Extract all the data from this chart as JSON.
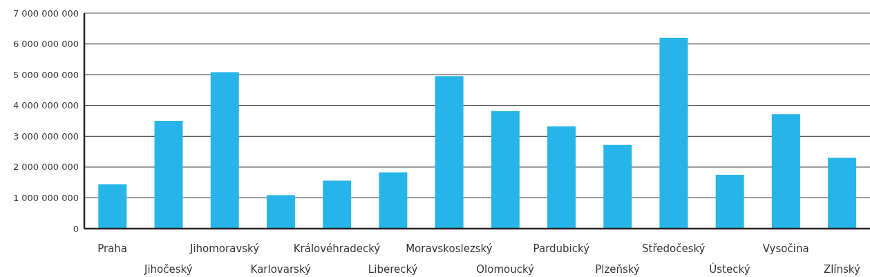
{
  "chart_data": {
    "type": "bar",
    "categories": [
      "Praha",
      "Jihočeský",
      "Jihomoravský",
      "Karlovarský",
      "Královéhradecký",
      "Liberecký",
      "Moravskoslezský",
      "Olomoucký",
      "Pardubický",
      "Plzeňský",
      "Středočeský",
      "Ústecký",
      "Vysočina",
      "Zlínský"
    ],
    "values": [
      1440000000,
      3500000000,
      5080000000,
      1090000000,
      1560000000,
      1830000000,
      4950000000,
      3820000000,
      3320000000,
      2720000000,
      6200000000,
      1750000000,
      3720000000,
      2300000000
    ],
    "color": "#27b5e9",
    "ylim": [
      0,
      7000000000
    ],
    "yticks": [
      {
        "value": 0,
        "label": "0"
      },
      {
        "value": 1000000000,
        "label": "1 000 000 000"
      },
      {
        "value": 2000000000,
        "label": "2 000 000 000"
      },
      {
        "value": 3000000000,
        "label": "3 000 000 000"
      },
      {
        "value": 4000000000,
        "label": "4 000 000 000"
      },
      {
        "value": 5000000000,
        "label": "5 000 000 000"
      },
      {
        "value": 6000000000,
        "label": "6 000 000 000"
      },
      {
        "value": 7000000000,
        "label": "7 000 000 000"
      }
    ],
    "grid": "y"
  }
}
